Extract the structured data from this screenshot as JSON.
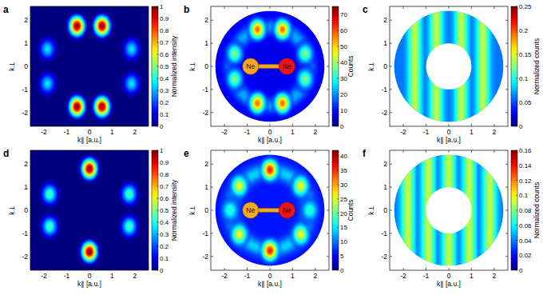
{
  "chart_data": [
    {
      "type": "heatmap",
      "label": "a",
      "xlabel": "k∥ [a.u.]",
      "ylabel": "k⊥",
      "xlim": [
        -2.6,
        2.6
      ],
      "ylim": [
        -2.6,
        2.6
      ],
      "xticks": [
        -2,
        -1,
        0,
        1,
        2
      ],
      "yticks": [
        -2,
        -1,
        0,
        1,
        2
      ],
      "colorbar": {
        "label": "Normalized intensity",
        "range": [
          0,
          1
        ],
        "ticks": [
          0,
          0.1,
          0.2,
          0.3,
          0.4,
          0.5,
          0.6,
          0.7,
          0.8,
          0.9,
          1
        ]
      },
      "background": {
        "value": 0
      },
      "lobes": [
        {
          "k_par": -0.55,
          "k_perp": 1.75,
          "value": 1
        },
        {
          "k_par": 0.55,
          "k_perp": 1.75,
          "value": 1
        },
        {
          "k_par": -0.55,
          "k_perp": -1.75,
          "value": 1
        },
        {
          "k_par": 0.55,
          "k_perp": -1.75,
          "value": 1
        },
        {
          "k_par": -1.85,
          "k_perp": 0.75,
          "value": 0.35
        },
        {
          "k_par": 1.85,
          "k_perp": 0.75,
          "value": 0.35
        },
        {
          "k_par": -1.85,
          "k_perp": -0.75,
          "value": 0.35
        },
        {
          "k_par": 1.85,
          "k_perp": -0.75,
          "value": 0.35
        }
      ]
    },
    {
      "type": "heatmap",
      "label": "b",
      "xlabel": "k∥ [a.u.]",
      "ylabel": "k⊥",
      "xlim": [
        -2.6,
        2.6
      ],
      "ylim": [
        -2.6,
        2.6
      ],
      "xticks": [
        -2,
        -1,
        0,
        1,
        2
      ],
      "yticks": [
        -2,
        -1,
        0,
        1,
        2
      ],
      "colorbar": {
        "label": "Counts",
        "range": [
          0,
          75
        ],
        "ticks": [
          0,
          10,
          20,
          30,
          40,
          50,
          60,
          70
        ]
      },
      "background": {
        "radius": 2.4,
        "value": 8
      },
      "ring": {
        "radius": 1.7,
        "value": 22
      },
      "lobes": [
        {
          "k_par": -0.55,
          "k_perp": 1.6,
          "value": 58
        },
        {
          "k_par": 0.55,
          "k_perp": 1.6,
          "value": 58
        },
        {
          "k_par": -0.55,
          "k_perp": -1.6,
          "value": 58
        },
        {
          "k_par": 0.55,
          "k_perp": -1.6,
          "value": 58
        },
        {
          "k_par": -1.55,
          "k_perp": 0.55,
          "value": 38
        },
        {
          "k_par": 1.55,
          "k_perp": 0.55,
          "value": 38
        },
        {
          "k_par": -1.55,
          "k_perp": -0.55,
          "value": 38
        },
        {
          "k_par": 1.55,
          "k_perp": -0.55,
          "value": 38
        }
      ],
      "annotations": [
        "Ne",
        "Ne"
      ]
    },
    {
      "type": "heatmap",
      "label": "c",
      "xlabel": "k∥ [a.u.]",
      "ylabel": "k⊥",
      "xlim": [
        -2.6,
        2.6
      ],
      "ylim": [
        -2.6,
        2.6
      ],
      "xticks": [
        -2,
        -1,
        0,
        1,
        2
      ],
      "yticks": [
        -2,
        -1,
        0,
        1,
        2
      ],
      "colorbar": {
        "label": "Normalized counts",
        "range": [
          0,
          0.25
        ],
        "ticks": [
          0,
          0.05,
          0.1,
          0.15,
          0.2,
          0.25
        ]
      },
      "background": {
        "radius": 2.4,
        "value": 0.06
      },
      "fringes": [
        {
          "k_par": -1.5,
          "value": 0.14
        },
        {
          "k_par": -0.55,
          "value": 0.14
        },
        {
          "k_par": 0.55,
          "value": 0.14
        },
        {
          "k_par": 1.5,
          "value": 0.14
        }
      ],
      "mask_radius": 1.0
    },
    {
      "type": "heatmap",
      "label": "d",
      "xlabel": "k∥ [a.u.]",
      "ylabel": "k⊥",
      "xlim": [
        -2.6,
        2.6
      ],
      "ylim": [
        -2.6,
        2.6
      ],
      "xticks": [
        -2,
        -1,
        0,
        1,
        2
      ],
      "yticks": [
        -2,
        -1,
        0,
        1,
        2
      ],
      "colorbar": {
        "label": "Normalized intensity",
        "range": [
          0,
          1
        ],
        "ticks": [
          0,
          0.1,
          0.2,
          0.3,
          0.4,
          0.5,
          0.6,
          0.7,
          0.8,
          0.9,
          1
        ]
      },
      "background": {
        "value": 0
      },
      "lobes": [
        {
          "k_par": 0,
          "k_perp": 1.8,
          "value": 1
        },
        {
          "k_par": 0,
          "k_perp": -1.8,
          "value": 1
        },
        {
          "k_par": -1.75,
          "k_perp": 0.7,
          "value": 0.45
        },
        {
          "k_par": 1.75,
          "k_perp": 0.7,
          "value": 0.45
        },
        {
          "k_par": -1.75,
          "k_perp": -0.7,
          "value": 0.45
        },
        {
          "k_par": 1.75,
          "k_perp": -0.7,
          "value": 0.45
        }
      ]
    },
    {
      "type": "heatmap",
      "label": "e",
      "xlabel": "k∥ [a.u.]",
      "ylabel": "k⊥",
      "xlim": [
        -2.6,
        2.6
      ],
      "ylim": [
        -2.6,
        2.6
      ],
      "xticks": [
        -2,
        -1,
        0,
        1,
        2
      ],
      "yticks": [
        -2,
        -1,
        0,
        1,
        2
      ],
      "colorbar": {
        "label": "Counts",
        "range": [
          0,
          42
        ],
        "ticks": [
          0,
          5,
          10,
          15,
          20,
          25,
          30,
          35,
          40
        ]
      },
      "background": {
        "radius": 2.4,
        "value": 6
      },
      "ring": {
        "radius": 1.7,
        "value": 14
      },
      "lobes": [
        {
          "k_par": 0,
          "k_perp": 1.75,
          "value": 36
        },
        {
          "k_par": 0,
          "k_perp": -1.75,
          "value": 36
        },
        {
          "k_par": -1.35,
          "k_perp": 1.05,
          "value": 26
        },
        {
          "k_par": 1.35,
          "k_perp": 1.05,
          "value": 26
        },
        {
          "k_par": -1.35,
          "k_perp": -1.05,
          "value": 26
        },
        {
          "k_par": 1.35,
          "k_perp": -1.05,
          "value": 26
        },
        {
          "k_par": -1.75,
          "k_perp": 0,
          "value": 18
        },
        {
          "k_par": 1.75,
          "k_perp": 0,
          "value": 18
        }
      ],
      "annotations": [
        "Ne",
        "Ne"
      ]
    },
    {
      "type": "heatmap",
      "label": "f",
      "xlabel": "k∥ [a.u.]",
      "ylabel": "k⊥",
      "xlim": [
        -2.6,
        2.6
      ],
      "ylim": [
        -2.6,
        2.6
      ],
      "xticks": [
        -2,
        -1,
        0,
        1,
        2
      ],
      "yticks": [
        -2,
        -1,
        0,
        1,
        2
      ],
      "colorbar": {
        "label": "Normalized counts",
        "range": [
          0,
          0.16
        ],
        "ticks": [
          0,
          0.02,
          0.04,
          0.06,
          0.08,
          0.1,
          0.12,
          0.14,
          0.16
        ]
      },
      "background": {
        "radius": 2.4,
        "value": 0.04
      },
      "fringes": [
        {
          "k_par": -1.8,
          "value": 0.09
        },
        {
          "k_par": -0.9,
          "value": 0.09
        },
        {
          "k_par": 0,
          "value": 0.09
        },
        {
          "k_par": 0.9,
          "value": 0.09
        },
        {
          "k_par": 1.8,
          "value": 0.09
        }
      ],
      "mask_radius": 1.0
    }
  ]
}
